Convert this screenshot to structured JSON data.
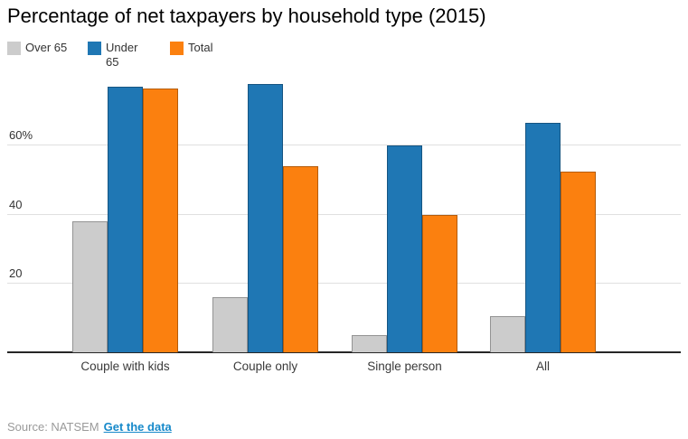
{
  "chart_data": {
    "type": "bar",
    "title": "Percentage of net taxpayers by household type (2015)",
    "categories": [
      "Couple with kids",
      "Couple only",
      "Single person",
      "All"
    ],
    "series": [
      {
        "name": "Over 65",
        "color": "#cccccc",
        "values": [
          38,
          16,
          5,
          10.5
        ]
      },
      {
        "name": "Under 65",
        "color": "#1f77b4",
        "values": [
          77,
          78,
          60,
          66.5
        ]
      },
      {
        "name": "Total",
        "color": "#fb800f",
        "values": [
          76.5,
          54,
          40,
          52.5
        ]
      }
    ],
    "xlabel": "",
    "ylabel": "",
    "ylim": [
      0,
      80
    ],
    "yticks": [
      {
        "v": 20,
        "label": "20"
      },
      {
        "v": 40,
        "label": "40"
      },
      {
        "v": 60,
        "label": "60%"
      }
    ],
    "grid": true,
    "legend_position": "top-left"
  },
  "source": {
    "text": "Source: NATSEM",
    "link_label": "Get the data"
  },
  "colors": {
    "gridline": "#e0e0e0",
    "axis_line": "#262626",
    "link": "#1689ca",
    "source_text": "#9a9a9a",
    "title_text": "#000000",
    "tick_text": "#333333"
  }
}
